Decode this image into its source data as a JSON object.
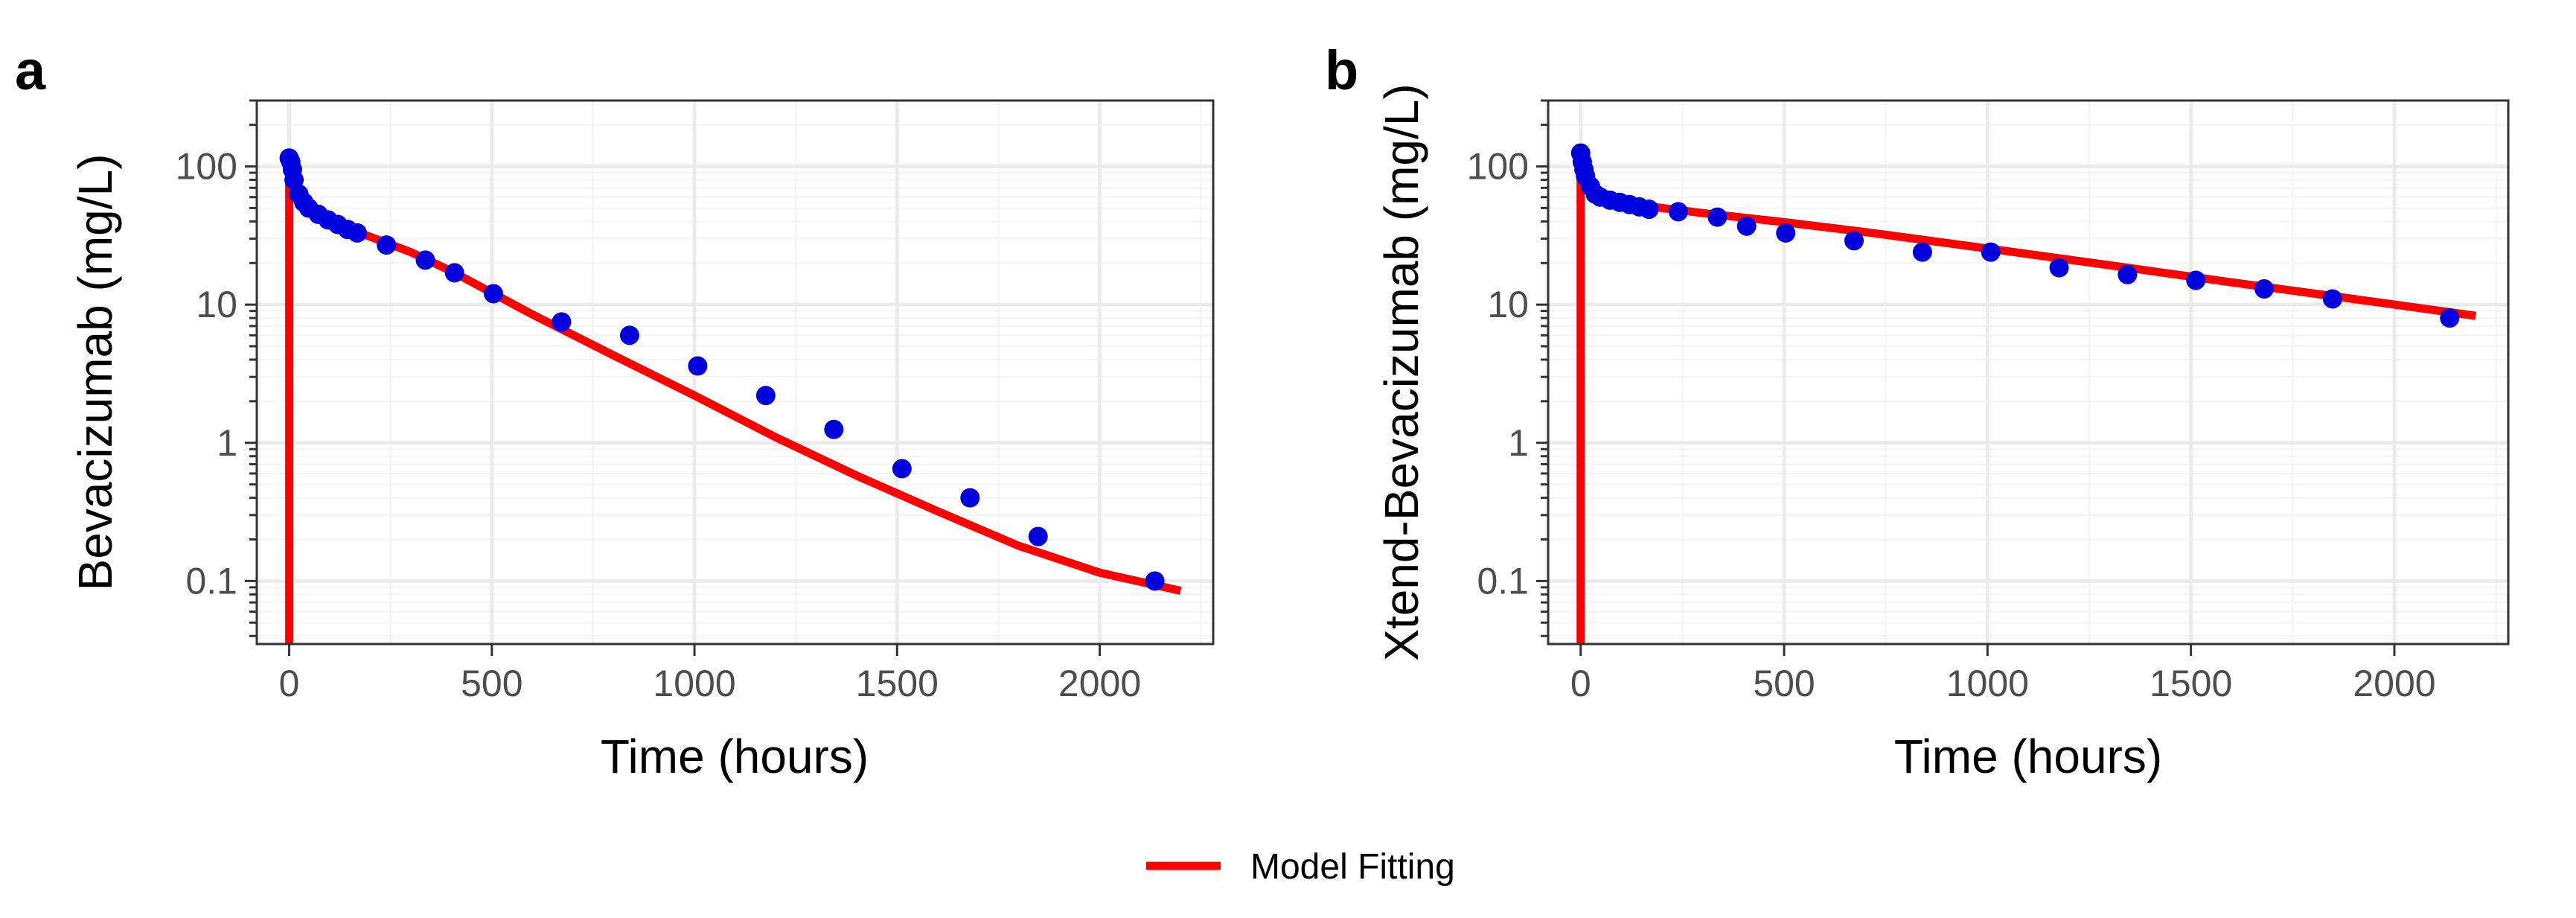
{
  "colors": {
    "points": "#0000dd",
    "model_line": "#ff0000",
    "panel_background": "#ffffff",
    "grid_major": "#ebebeb",
    "grid_minor": "#f3f3f3",
    "panel_border": "#333333",
    "tick_label": "#4d4d4d",
    "axis_title": "#000000"
  },
  "legend": {
    "position": "bottom-center",
    "label": "Model Fitting",
    "color": "#ff0000"
  },
  "chart_data": [
    {
      "type": "scatter",
      "panel_label": "a",
      "xlabel": "Time (hours)",
      "ylabel": "Bevacizumab (mg/L)",
      "x_scale": "linear",
      "y_scale": "log",
      "xlim": [
        -80,
        2280
      ],
      "ylim": [
        0.035,
        300
      ],
      "x_ticks": [
        0,
        500,
        1000,
        1500,
        2000
      ],
      "x_tick_labels": [
        "0",
        "500",
        "1000",
        "1500",
        "2000"
      ],
      "y_ticks": [
        0.1,
        1,
        10,
        100
      ],
      "y_tick_labels": [
        "0.1",
        "1",
        "10",
        "100"
      ],
      "grid": true,
      "series": [
        {
          "kind": "points",
          "color": "#0000dd",
          "x": [
            0,
            4,
            8,
            12,
            24,
            36,
            48,
            72,
            96,
            120,
            144,
            168,
            240,
            336,
            408,
            504,
            672,
            840,
            1008,
            1176,
            1344,
            1512,
            1680,
            1848,
            2136
          ],
          "y": [
            115,
            108,
            95,
            80,
            63,
            55,
            50,
            45,
            41,
            38,
            35,
            33,
            27,
            21,
            17,
            12,
            7.5,
            6,
            3.6,
            2.2,
            1.25,
            0.65,
            0.4,
            0.21,
            0.1
          ]
        },
        {
          "kind": "line",
          "name": "Model Fitting",
          "color": "#ff0000",
          "x": [
            0,
            0,
            5,
            12,
            24,
            48,
            72,
            100,
            150,
            200,
            300,
            400,
            500,
            600,
            800,
            1000,
            1200,
            1400,
            1600,
            1800,
            2000,
            2200
          ],
          "y": [
            0.03,
            95,
            88,
            80,
            70,
            56,
            48,
            42,
            35,
            31,
            24,
            17.5,
            12.2,
            8.5,
            4.3,
            2.2,
            1.1,
            0.58,
            0.32,
            0.18,
            0.115,
            0.085
          ]
        }
      ]
    },
    {
      "type": "scatter",
      "panel_label": "b",
      "xlabel": "Time (hours)",
      "ylabel": "Xtend-Bevacizumab (mg/L)",
      "x_scale": "linear",
      "y_scale": "log",
      "xlim": [
        -80,
        2280
      ],
      "ylim": [
        0.035,
        300
      ],
      "x_ticks": [
        0,
        500,
        1000,
        1500,
        2000
      ],
      "x_tick_labels": [
        "0",
        "500",
        "1000",
        "1500",
        "2000"
      ],
      "y_ticks": [
        0.1,
        1,
        10,
        100
      ],
      "y_tick_labels": [
        "0.1",
        "1",
        "10",
        "100"
      ],
      "grid": true,
      "series": [
        {
          "kind": "points",
          "color": "#0000dd",
          "x": [
            0,
            4,
            8,
            12,
            24,
            36,
            48,
            72,
            96,
            120,
            144,
            168,
            240,
            336,
            408,
            504,
            672,
            840,
            1008,
            1176,
            1344,
            1512,
            1680,
            1848,
            2136
          ],
          "y": [
            125,
            108,
            95,
            85,
            72,
            63,
            60,
            57,
            55,
            53,
            51,
            49,
            47,
            43,
            37,
            33,
            29,
            24,
            24,
            18.5,
            16.5,
            15,
            13,
            11,
            8
          ]
        },
        {
          "kind": "line",
          "name": "Model Fitting",
          "color": "#ff0000",
          "x": [
            0,
            0,
            5,
            12,
            24,
            48,
            72,
            100,
            150,
            200,
            300,
            500,
            700,
            1000,
            1300,
            1600,
            1900,
            2200
          ],
          "y": [
            0.03,
            95,
            85,
            78,
            70,
            63,
            59,
            56,
            52,
            50,
            46,
            39.5,
            33.5,
            25.5,
            19.3,
            14.5,
            11,
            8.3
          ]
        }
      ]
    }
  ]
}
